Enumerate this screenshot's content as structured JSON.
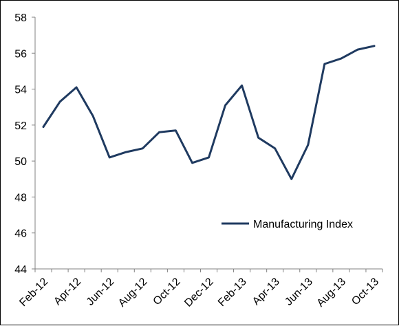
{
  "chart_data": {
    "type": "line",
    "title": "",
    "xlabel": "",
    "ylabel": "",
    "ylim": [
      44,
      58
    ],
    "yticks": [
      44,
      46,
      48,
      50,
      52,
      54,
      56,
      58
    ],
    "grid": false,
    "legend_position": "lower-right",
    "x": [
      "Feb-12",
      "Mar-12",
      "Apr-12",
      "May-12",
      "Jun-12",
      "Jul-12",
      "Aug-12",
      "Sep-12",
      "Oct-12",
      "Nov-12",
      "Dec-12",
      "Jan-13",
      "Feb-13",
      "Mar-13",
      "Apr-13",
      "May-13",
      "Jun-13",
      "Jul-13",
      "Aug-13",
      "Sep-13",
      "Oct-13"
    ],
    "xtick_labels": [
      "Feb-12",
      "Apr-12",
      "Jun-12",
      "Aug-12",
      "Oct-12",
      "Dec-12",
      "Feb-13",
      "Apr-13",
      "Jun-13",
      "Aug-13",
      "Oct-13"
    ],
    "series": [
      {
        "name": "Manufacturing Index",
        "color": "#1F3A60",
        "values": [
          51.9,
          53.3,
          54.1,
          52.5,
          50.2,
          50.5,
          50.7,
          51.6,
          51.7,
          49.9,
          50.2,
          53.1,
          54.2,
          51.3,
          50.7,
          49.0,
          50.9,
          55.4,
          55.7,
          56.2,
          56.4
        ]
      }
    ]
  }
}
